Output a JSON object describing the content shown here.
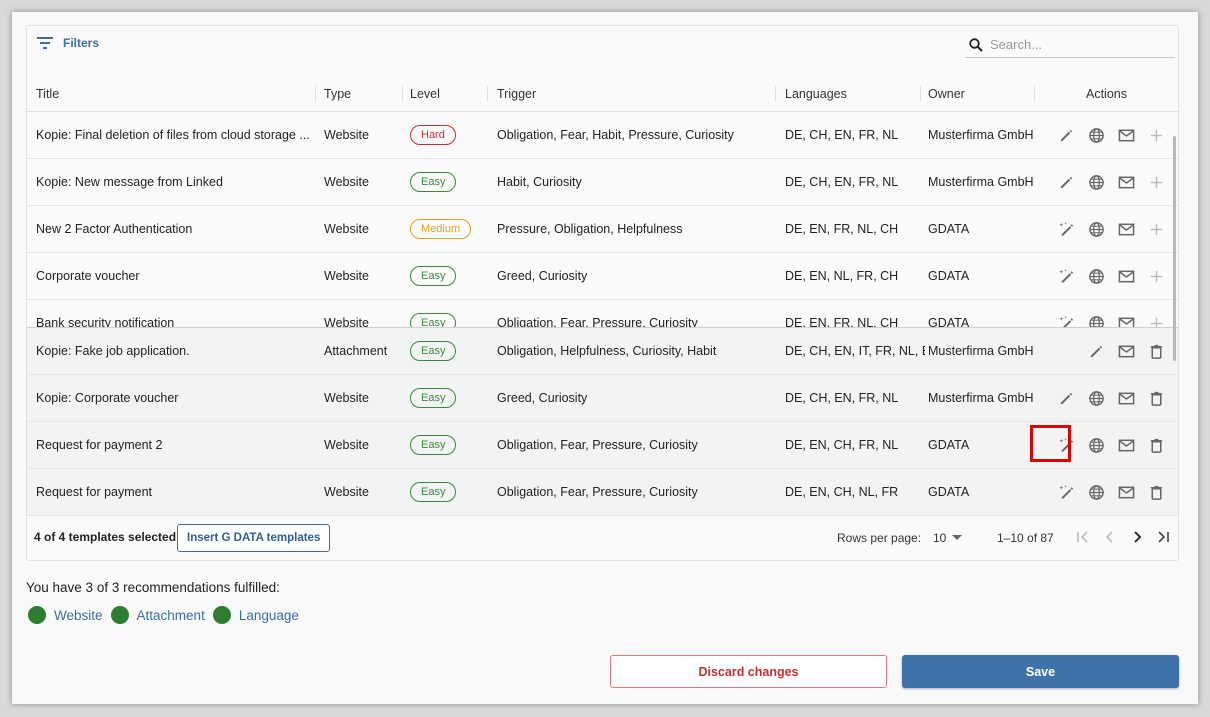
{
  "toolbar": {
    "filters_label": "Filters",
    "search_placeholder": "Search..."
  },
  "columns": [
    "Title",
    "Type",
    "Level",
    "Trigger",
    "Languages",
    "Owner",
    "Actions"
  ],
  "rows": [
    {
      "title": "Kopie: Final deletion of files from cloud storage ...",
      "type": "Website",
      "level": "Hard",
      "level_kind": "hard",
      "trigger": "Obligation, Fear, Habit, Pressure, Curiosity",
      "languages": "DE, CH, EN, FR, NL",
      "owner": "Musterfirma GmbH",
      "edit_icon": "pencil-icon",
      "globe": true,
      "last": "plus-icon",
      "grey": false
    },
    {
      "title": "Kopie: New message from Linked",
      "type": "Website",
      "level": "Easy",
      "level_kind": "easy",
      "trigger": "Habit, Curiosity",
      "languages": "DE, CH, EN, FR, NL",
      "owner": "Musterfirma GmbH",
      "edit_icon": "pencil-icon",
      "globe": true,
      "last": "plus-icon",
      "grey": false
    },
    {
      "title": "New 2 Factor Authentication",
      "type": "Website",
      "level": "Medium",
      "level_kind": "medium",
      "trigger": "Pressure, Obligation, Helpfulness",
      "languages": "DE, EN, FR, NL, CH",
      "owner": "GDATA",
      "edit_icon": "magic-pencil-icon",
      "globe": true,
      "last": "plus-icon",
      "grey": false
    },
    {
      "title": "Corporate voucher",
      "type": "Website",
      "level": "Easy",
      "level_kind": "easy",
      "trigger": "Greed, Curiosity",
      "languages": "DE, EN, NL, FR, CH",
      "owner": "GDATA",
      "edit_icon": "magic-pencil-icon",
      "globe": true,
      "last": "plus-icon",
      "grey": false
    },
    {
      "title": "Bank security notification",
      "type": "Website",
      "level": "Easy",
      "level_kind": "easy",
      "trigger": "Obligation, Fear, Pressure, Curiosity",
      "languages": "DE, EN, FR, NL, CH",
      "owner": "GDATA",
      "edit_icon": "magic-pencil-icon",
      "globe": true,
      "last": "plus-icon",
      "grey": false
    },
    {
      "title": "Kopie: Fake job application.",
      "type": "Attachment",
      "level": "Easy",
      "level_kind": "easy",
      "trigger": "Obligation, Helpfulness, Curiosity, Habit",
      "languages": "DE, CH, EN, IT, FR, NL, ES",
      "owner": "Musterfirma GmbH",
      "edit_icon": "pencil-icon",
      "globe": false,
      "last": "trash-icon",
      "grey": true
    },
    {
      "title": "Kopie: Corporate voucher",
      "type": "Website",
      "level": "Easy",
      "level_kind": "easy",
      "trigger": "Greed, Curiosity",
      "languages": "DE, CH, EN, FR, NL",
      "owner": "Musterfirma GmbH",
      "edit_icon": "pencil-icon",
      "globe": true,
      "last": "trash-icon",
      "grey": true
    },
    {
      "title": "Request for payment 2",
      "type": "Website",
      "level": "Easy",
      "level_kind": "easy",
      "trigger": "Obligation, Fear, Pressure, Curiosity",
      "languages": "DE, EN, CH, FR, NL",
      "owner": "GDATA",
      "edit_icon": "magic-pencil-icon",
      "globe": true,
      "last": "trash-icon",
      "grey": true
    },
    {
      "title": "Request for payment",
      "type": "Website",
      "level": "Easy",
      "level_kind": "easy",
      "trigger": "Obligation, Fear, Pressure, Curiosity",
      "languages": "DE, EN, CH, NL, FR",
      "owner": "GDATA",
      "edit_icon": "magic-pencil-icon",
      "globe": true,
      "last": "trash-icon",
      "grey": true
    }
  ],
  "footer": {
    "selected_text": "4 of 4 templates selected",
    "insert_label": "Insert G DATA templates",
    "rows_per_page_label": "Rows per page:",
    "rows_per_page_value": "10",
    "range": "1–10 of 87"
  },
  "recommendations": {
    "title": "You have 3 of 3 recommendations fulfilled:",
    "items": [
      "Website",
      "Attachment",
      "Language"
    ],
    "dot_color": "#2e7d32"
  },
  "buttons": {
    "discard": "Discard changes",
    "save": "Save"
  },
  "colors": {
    "accent": "#3f72a8",
    "danger": "#c53030",
    "easy": "#3a8a3a",
    "medium": "#e2a020"
  }
}
